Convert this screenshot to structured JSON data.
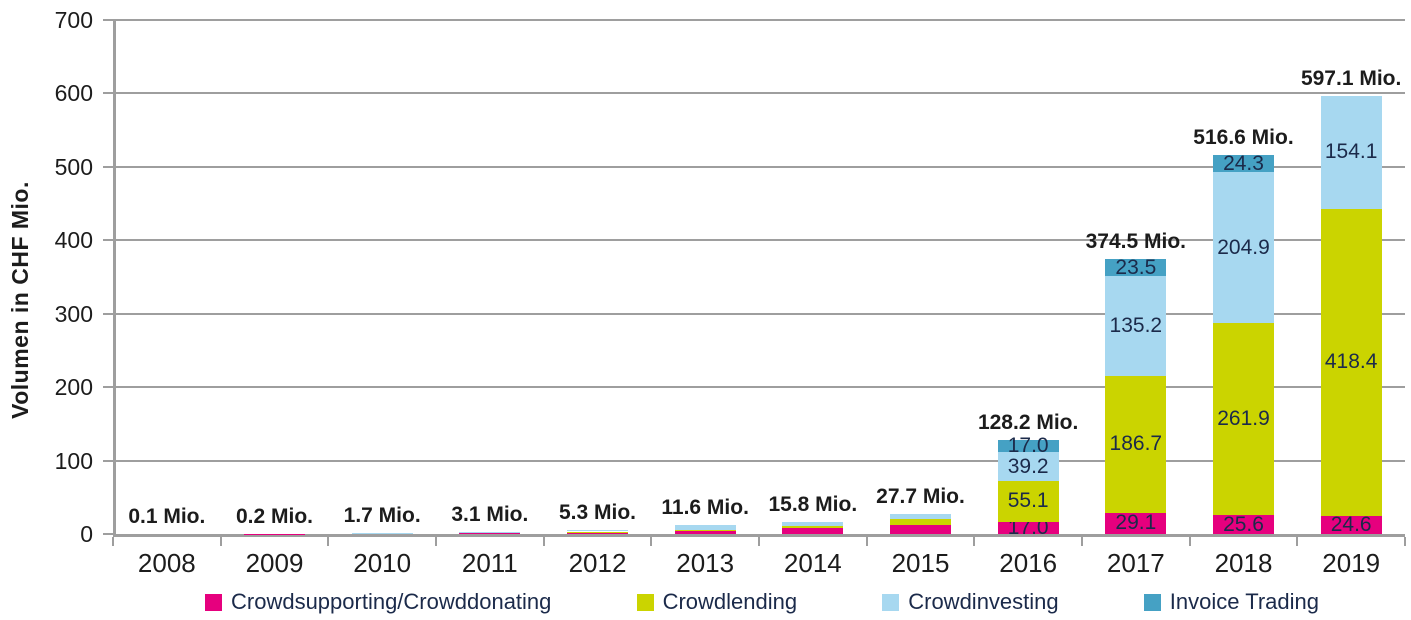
{
  "chart_data": {
    "type": "bar",
    "stacked": true,
    "title": "",
    "ylabel": "Volumen in CHF Mio.",
    "xlabel": "",
    "ylim": [
      0,
      700
    ],
    "yticks": [
      0,
      100,
      200,
      300,
      400,
      500,
      600,
      700
    ],
    "grid": true,
    "legend_position": "bottom",
    "categories": [
      "2008",
      "2009",
      "2010",
      "2011",
      "2012",
      "2013",
      "2014",
      "2015",
      "2016",
      "2017",
      "2018",
      "2019"
    ],
    "totals": [
      "0.1 Mio.",
      "0.2 Mio.",
      "1.7 Mio.",
      "3.1 Mio.",
      "5.3 Mio.",
      "11.6 Mio.",
      "15.8 Mio.",
      "27.7 Mio.",
      "128.2 Mio.",
      "374.5 Mio.",
      "516.6 Mio.",
      "597.1 Mio."
    ],
    "series": [
      {
        "name": "Crowdsupporting/Crowddonating",
        "color": "#e6007e",
        "values": [
          0.1,
          0.2,
          1.2,
          1.2,
          1.6,
          4.2,
          7.7,
          12.3,
          17.0,
          29.1,
          25.6,
          24.6
        ],
        "labels": [
          "",
          "",
          "",
          "",
          "",
          "",
          "",
          "",
          "17.0",
          "29.1",
          "25.6",
          "24.6"
        ]
      },
      {
        "name": "Crowdlending",
        "color": "#cbd400",
        "values": [
          0,
          0,
          0,
          0,
          1.8,
          1.8,
          3.5,
          7.9,
          55.1,
          186.7,
          261.9,
          418.4
        ],
        "labels": [
          "",
          "",
          "",
          "",
          "",
          "",
          "",
          "",
          "55.1",
          "186.7",
          "261.9",
          "418.4"
        ]
      },
      {
        "name": "Crowdinvesting",
        "color": "#a7d8f0",
        "values": [
          0,
          0,
          0.5,
          1.9,
          1.9,
          5.6,
          4.6,
          7.5,
          39.2,
          135.2,
          204.9,
          154.1
        ],
        "labels": [
          "",
          "",
          "",
          "",
          "",
          "",
          "",
          "",
          "39.2",
          "135.2",
          "204.9",
          "154.1"
        ]
      },
      {
        "name": "Invoice Trading",
        "color": "#45a1c4",
        "values": [
          0,
          0,
          0,
          0,
          0,
          0,
          0,
          0,
          17.0,
          23.5,
          24.3,
          0
        ],
        "labels": [
          "",
          "",
          "",
          "",
          "",
          "",
          "",
          "",
          "17.0",
          "23.5",
          "24.3",
          ""
        ]
      }
    ],
    "colors": {
      "grid": "#9e9e9e",
      "axis": "#9e9e9e",
      "axis_text": "#1c1c1c",
      "segment_text": "#1b2a4a",
      "legend_text": "#1b2a4a"
    }
  }
}
